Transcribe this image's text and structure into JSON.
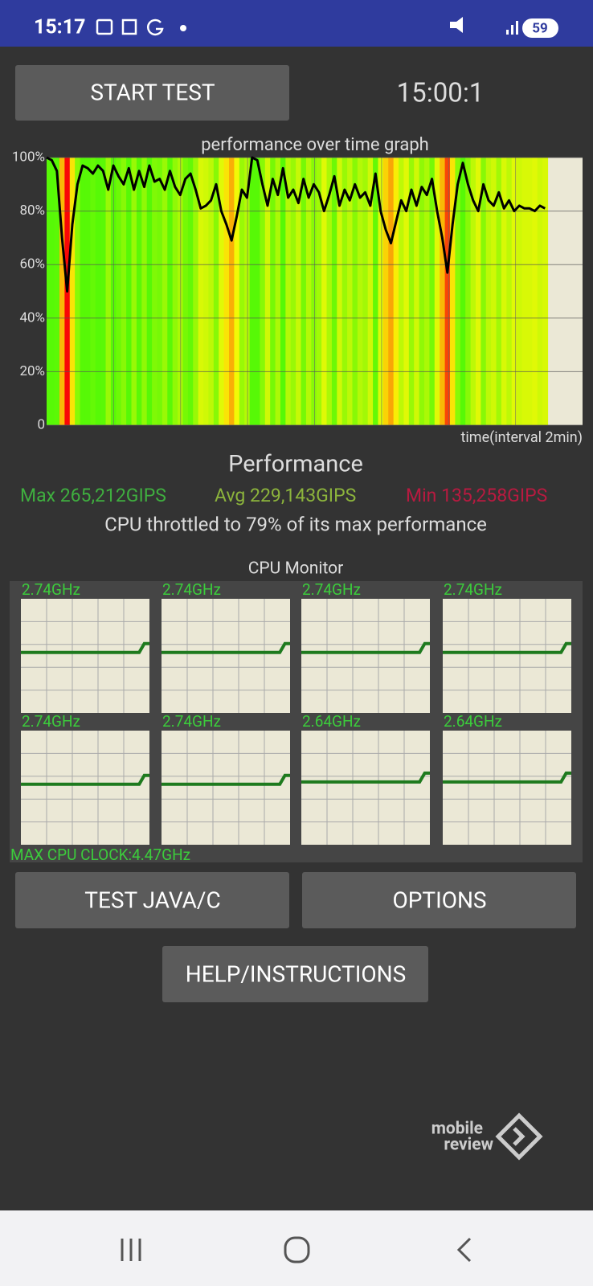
{
  "status_bar": {
    "time": "15:17",
    "battery": "59"
  },
  "buttons": {
    "start": "START TEST",
    "java": "TEST JAVA/C",
    "options": "OPTIONS",
    "help": "HELP/INSTRUCTIONS"
  },
  "timer": "15:00:1",
  "chart_data": {
    "type": "line",
    "title": "performance over time graph",
    "x_label": "time(interval 2min)",
    "values": [
      100,
      99,
      95,
      70,
      50,
      75,
      90,
      97,
      96,
      94,
      97,
      95,
      88,
      97,
      93,
      90,
      96,
      88,
      95,
      89,
      97,
      91,
      92,
      88,
      95,
      89,
      86,
      92,
      94,
      88,
      81,
      82,
      84,
      90,
      80,
      75,
      69,
      78,
      88,
      85,
      100,
      99,
      90,
      82,
      92,
      86,
      96,
      85,
      88,
      83,
      92,
      85,
      90,
      87,
      80,
      86,
      93,
      82,
      88,
      84,
      90,
      85,
      87,
      82,
      94,
      80,
      73,
      68,
      76,
      84,
      80,
      88,
      82,
      89,
      86,
      92,
      80,
      70,
      57,
      75,
      90,
      98,
      90,
      84,
      80,
      90,
      84,
      82,
      87,
      81,
      84,
      80,
      82,
      81,
      81,
      80,
      82,
      81
    ],
    "ylim": [
      0,
      100
    ],
    "yticks": [
      0,
      {
        "value": 20,
        "label": "20%"
      },
      {
        "value": 40,
        "label": "40%"
      },
      {
        "value": 60,
        "label": "60%"
      },
      {
        "value": 80,
        "label": "80%"
      },
      {
        "value": 100,
        "label": "100%"
      }
    ],
    "color": "#000000",
    "grid": true
  },
  "performance": {
    "heading": "Performance",
    "max": "Max 265,212GIPS",
    "avg": "Avg 229,143GIPS",
    "min": "Min 135,258GIPS",
    "throttle": "CPU throttled to 79% of its max performance"
  },
  "cpu_monitor": {
    "title": "CPU Monitor",
    "cores": [
      "2.74GHz",
      "2.74GHz",
      "2.74GHz",
      "2.74GHz",
      "2.74GHz",
      "2.74GHz",
      "2.64GHz",
      "2.64GHz"
    ],
    "max_clock": "MAX CPU CLOCK:4.47GHz"
  },
  "watermark": {
    "line1": "mobile",
    "line2": "review"
  }
}
